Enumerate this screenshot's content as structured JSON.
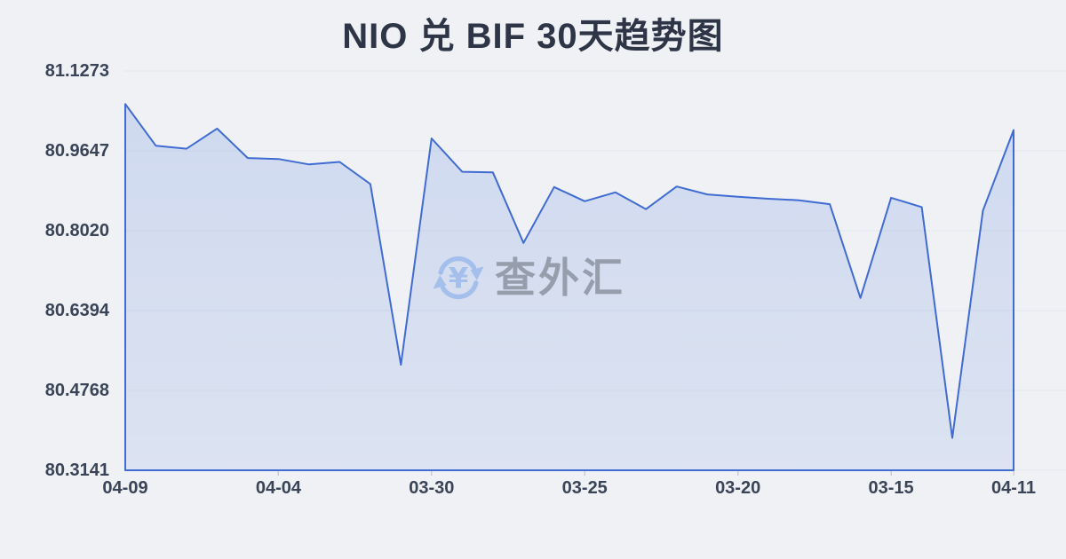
{
  "chart": {
    "title": "NIO 兑 BIF 30天趋势图"
  },
  "watermark": {
    "icon": "currency-exchange-icon",
    "text": "查外汇"
  },
  "chart_data": {
    "type": "area",
    "title": "NIO 兑 BIF 30天趋势图",
    "xlabel": "",
    "ylabel": "",
    "grid": true,
    "legend": false,
    "y_range": [
      80.3141,
      81.1273
    ],
    "y_ticks": [
      "81.1273",
      "80.9647",
      "80.8020",
      "80.6394",
      "80.4768",
      "80.3141"
    ],
    "x_tick_labels": [
      {
        "label": "04-09",
        "index": 0
      },
      {
        "label": "04-04",
        "index": 5
      },
      {
        "label": "03-30",
        "index": 10
      },
      {
        "label": "03-25",
        "index": 15
      },
      {
        "label": "03-20",
        "index": 20
      },
      {
        "label": "03-15",
        "index": 25
      },
      {
        "label": "04-11",
        "index": 29
      }
    ],
    "values": [
      81.06,
      80.975,
      80.969,
      81.01,
      80.95,
      80.948,
      80.937,
      80.942,
      80.897,
      80.529,
      80.99,
      80.922,
      80.921,
      80.777,
      80.891,
      80.862,
      80.88,
      80.846,
      80.892,
      80.876,
      80.871,
      80.867,
      80.864,
      80.856,
      80.665,
      80.869,
      80.85,
      80.38,
      80.843,
      81.007
    ],
    "colors": {
      "background": "#eff1f5",
      "line": "#3f6bd2",
      "fill_top": "rgba(64,112,212,0.18)",
      "fill_bottom": "rgba(64,112,212,0.11)",
      "grid": "#e3e6ec",
      "tick": "#c9ced6",
      "axis_label": "#3a4457",
      "title": "#2d3547",
      "watermark_text": "#969eac",
      "watermark_icon": "#a5bfec"
    }
  }
}
